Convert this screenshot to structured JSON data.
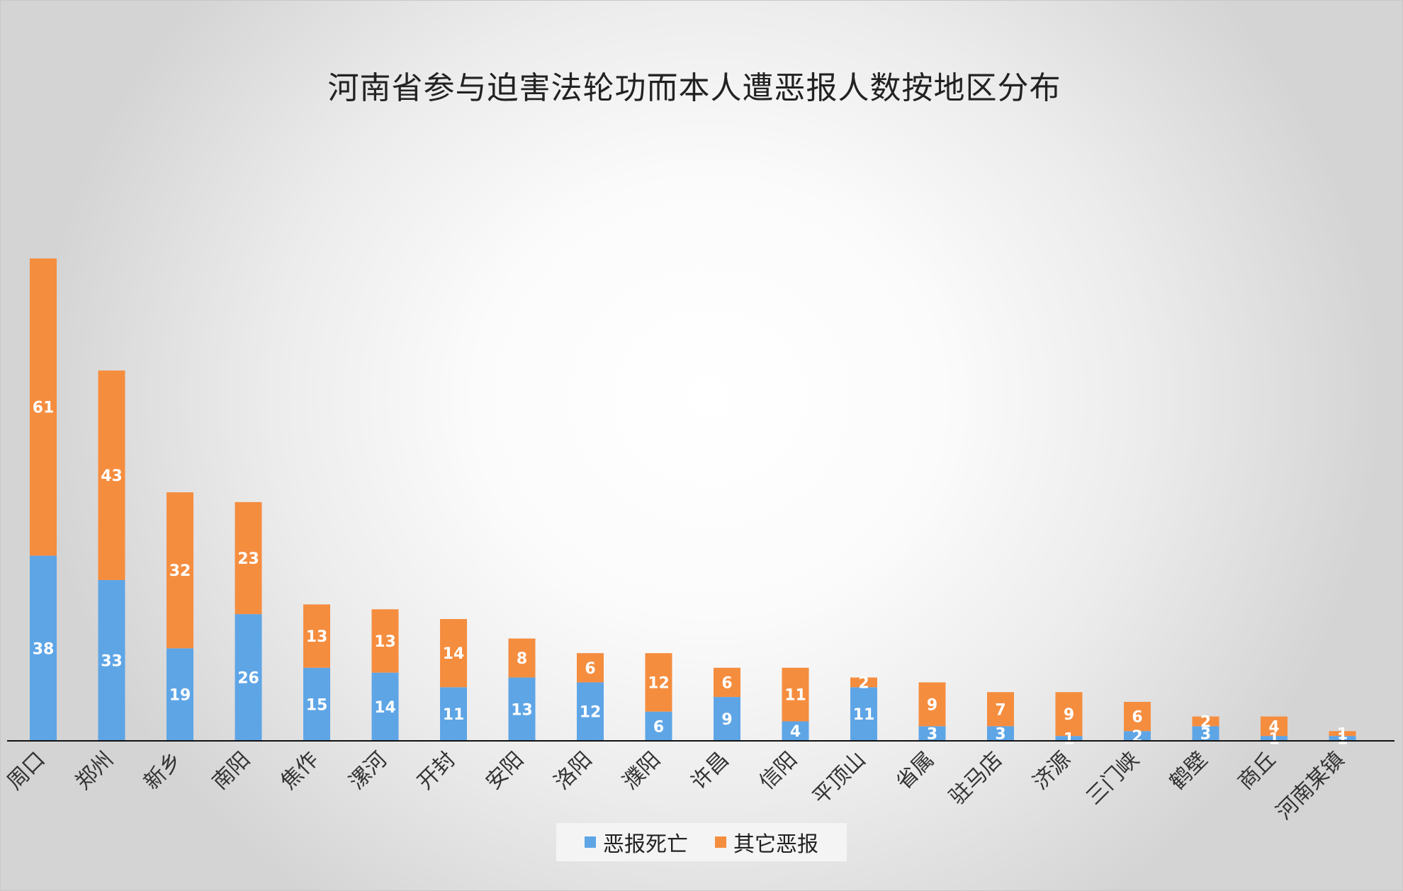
{
  "chart_data": {
    "type": "bar",
    "stacked": true,
    "title": "河南省参与迫害法轮功而本人遭恶报人数按地区分布",
    "categories": [
      "周口",
      "郑州",
      "新乡",
      "南阳",
      "焦作",
      "漯河",
      "开封",
      "安阳",
      "洛阳",
      "濮阳",
      "许昌",
      "信阳",
      "平顶山",
      "省属",
      "驻马店",
      "济源",
      "三门峡",
      "鹤壁",
      "商丘",
      "河南某镇"
    ],
    "series": [
      {
        "name": "恶报死亡",
        "color": "#5ea5e6",
        "values": [
          38,
          33,
          19,
          26,
          15,
          14,
          11,
          13,
          12,
          6,
          9,
          4,
          11,
          3,
          3,
          1,
          2,
          3,
          1,
          1
        ]
      },
      {
        "name": "其它恶报",
        "color": "#f58d3f",
        "values": [
          61,
          43,
          32,
          23,
          13,
          13,
          14,
          8,
          6,
          12,
          6,
          11,
          2,
          9,
          7,
          9,
          6,
          2,
          4,
          1
        ]
      }
    ],
    "legend_position": "bottom",
    "grid": false
  }
}
